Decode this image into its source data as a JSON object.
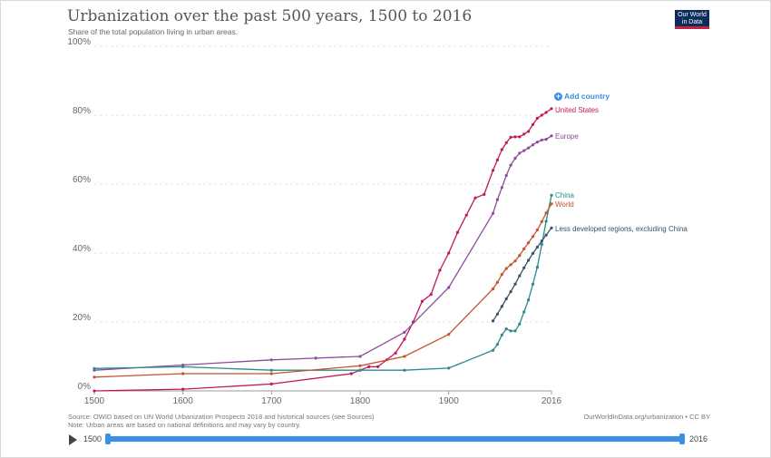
{
  "title": "Urbanization over the past 500 years, 1500 to 2016",
  "subtitle": "Share of the total population living in urban areas.",
  "logo": {
    "line1": "Our World",
    "line2": "in Data"
  },
  "add_country": "Add country",
  "footer": {
    "source": "Source: OWID based on UN World Urbanization Prospects 2018 and historical sources (see Sources)",
    "note": "Note: Urban areas are based on national definitions and may vary by country.",
    "url": "OurWorldInData.org/urbanization • CC BY"
  },
  "timeline": {
    "start": "1500",
    "end": "2016"
  },
  "chart_data": {
    "type": "line",
    "title": "Urbanization over the past 500 years, 1500 to 2016",
    "xlim": [
      1500,
      2016
    ],
    "ylim": [
      0,
      100
    ],
    "x_ticks": [
      {
        "value": 1500,
        "label": "1500"
      },
      {
        "value": 1600,
        "label": "1600"
      },
      {
        "value": 1700,
        "label": "1700"
      },
      {
        "value": 1800,
        "label": "1800"
      },
      {
        "value": 1900,
        "label": "1900"
      },
      {
        "value": 2016,
        "label": "2016"
      }
    ],
    "y_ticks": [
      {
        "value": 0,
        "label": "0%"
      },
      {
        "value": 20,
        "label": "20%"
      },
      {
        "value": 40,
        "label": "40%"
      },
      {
        "value": 60,
        "label": "60%"
      },
      {
        "value": 80,
        "label": "80%"
      },
      {
        "value": 100,
        "label": "100%"
      }
    ],
    "grid": true,
    "series": [
      {
        "name": "United States",
        "color": "#c2185b",
        "points": [
          [
            1500,
            0
          ],
          [
            1600,
            0.5
          ],
          [
            1700,
            2
          ],
          [
            1790,
            5
          ],
          [
            1800,
            6
          ],
          [
            1810,
            7
          ],
          [
            1820,
            7
          ],
          [
            1830,
            9
          ],
          [
            1840,
            11
          ],
          [
            1850,
            15
          ],
          [
            1860,
            20
          ],
          [
            1870,
            26
          ],
          [
            1880,
            28
          ],
          [
            1890,
            35
          ],
          [
            1900,
            40
          ],
          [
            1910,
            46
          ],
          [
            1920,
            51
          ],
          [
            1930,
            56
          ],
          [
            1940,
            57
          ],
          [
            1950,
            64
          ],
          [
            1955,
            67
          ],
          [
            1960,
            70
          ],
          [
            1965,
            72
          ],
          [
            1970,
            73.6
          ],
          [
            1975,
            73.7
          ],
          [
            1980,
            73.7
          ],
          [
            1985,
            74.5
          ],
          [
            1990,
            75.3
          ],
          [
            1995,
            77.3
          ],
          [
            2000,
            79.1
          ],
          [
            2005,
            80
          ],
          [
            2010,
            80.8
          ],
          [
            2016,
            81.9
          ]
        ]
      },
      {
        "name": "Europe",
        "color": "#8e4b9c",
        "points": [
          [
            1500,
            6
          ],
          [
            1600,
            7.5
          ],
          [
            1700,
            9
          ],
          [
            1750,
            9.5
          ],
          [
            1800,
            10
          ],
          [
            1850,
            17
          ],
          [
            1900,
            30
          ],
          [
            1950,
            51.5
          ],
          [
            1955,
            55.5
          ],
          [
            1960,
            59
          ],
          [
            1965,
            62.5
          ],
          [
            1970,
            65.5
          ],
          [
            1975,
            67.5
          ],
          [
            1980,
            69
          ],
          [
            1985,
            69.7
          ],
          [
            1990,
            70.5
          ],
          [
            1995,
            71.4
          ],
          [
            2000,
            72.2
          ],
          [
            2005,
            72.8
          ],
          [
            2010,
            73
          ],
          [
            2016,
            74
          ]
        ]
      },
      {
        "name": "China",
        "color": "#2a8a8c",
        "points": [
          [
            1500,
            6.5
          ],
          [
            1600,
            7
          ],
          [
            1700,
            6
          ],
          [
            1800,
            6
          ],
          [
            1850,
            6
          ],
          [
            1900,
            6.6
          ],
          [
            1950,
            11.8
          ],
          [
            1955,
            13.5
          ],
          [
            1960,
            16.2
          ],
          [
            1965,
            18
          ],
          [
            1970,
            17.4
          ],
          [
            1975,
            17.4
          ],
          [
            1980,
            19.4
          ],
          [
            1985,
            22.9
          ],
          [
            1990,
            26.4
          ],
          [
            1995,
            31
          ],
          [
            2000,
            35.9
          ],
          [
            2005,
            42.5
          ],
          [
            2010,
            49.2
          ],
          [
            2016,
            56.8
          ]
        ]
      },
      {
        "name": "World",
        "color": "#c4542d",
        "points": [
          [
            1500,
            4
          ],
          [
            1600,
            5
          ],
          [
            1700,
            5
          ],
          [
            1800,
            7.3
          ],
          [
            1850,
            10
          ],
          [
            1900,
            16.4
          ],
          [
            1950,
            29.6
          ],
          [
            1955,
            31.5
          ],
          [
            1960,
            33.8
          ],
          [
            1965,
            35.5
          ],
          [
            1970,
            36.6
          ],
          [
            1975,
            37.7
          ],
          [
            1980,
            39.3
          ],
          [
            1985,
            41.2
          ],
          [
            1990,
            43
          ],
          [
            1995,
            44.8
          ],
          [
            2000,
            46.7
          ],
          [
            2005,
            49.1
          ],
          [
            2010,
            51.6
          ],
          [
            2016,
            54.3
          ]
        ]
      },
      {
        "name": "Less developed regions, excluding China",
        "color": "#3a5268",
        "points": [
          [
            1950,
            20.3
          ],
          [
            1955,
            22.3
          ],
          [
            1960,
            24.5
          ],
          [
            1965,
            26.7
          ],
          [
            1970,
            28.8
          ],
          [
            1975,
            31
          ],
          [
            1980,
            33.4
          ],
          [
            1985,
            35.7
          ],
          [
            1990,
            37.9
          ],
          [
            1995,
            39.9
          ],
          [
            2000,
            41.7
          ],
          [
            2005,
            43.5
          ],
          [
            2010,
            45.2
          ],
          [
            2016,
            47.3
          ]
        ]
      }
    ]
  }
}
